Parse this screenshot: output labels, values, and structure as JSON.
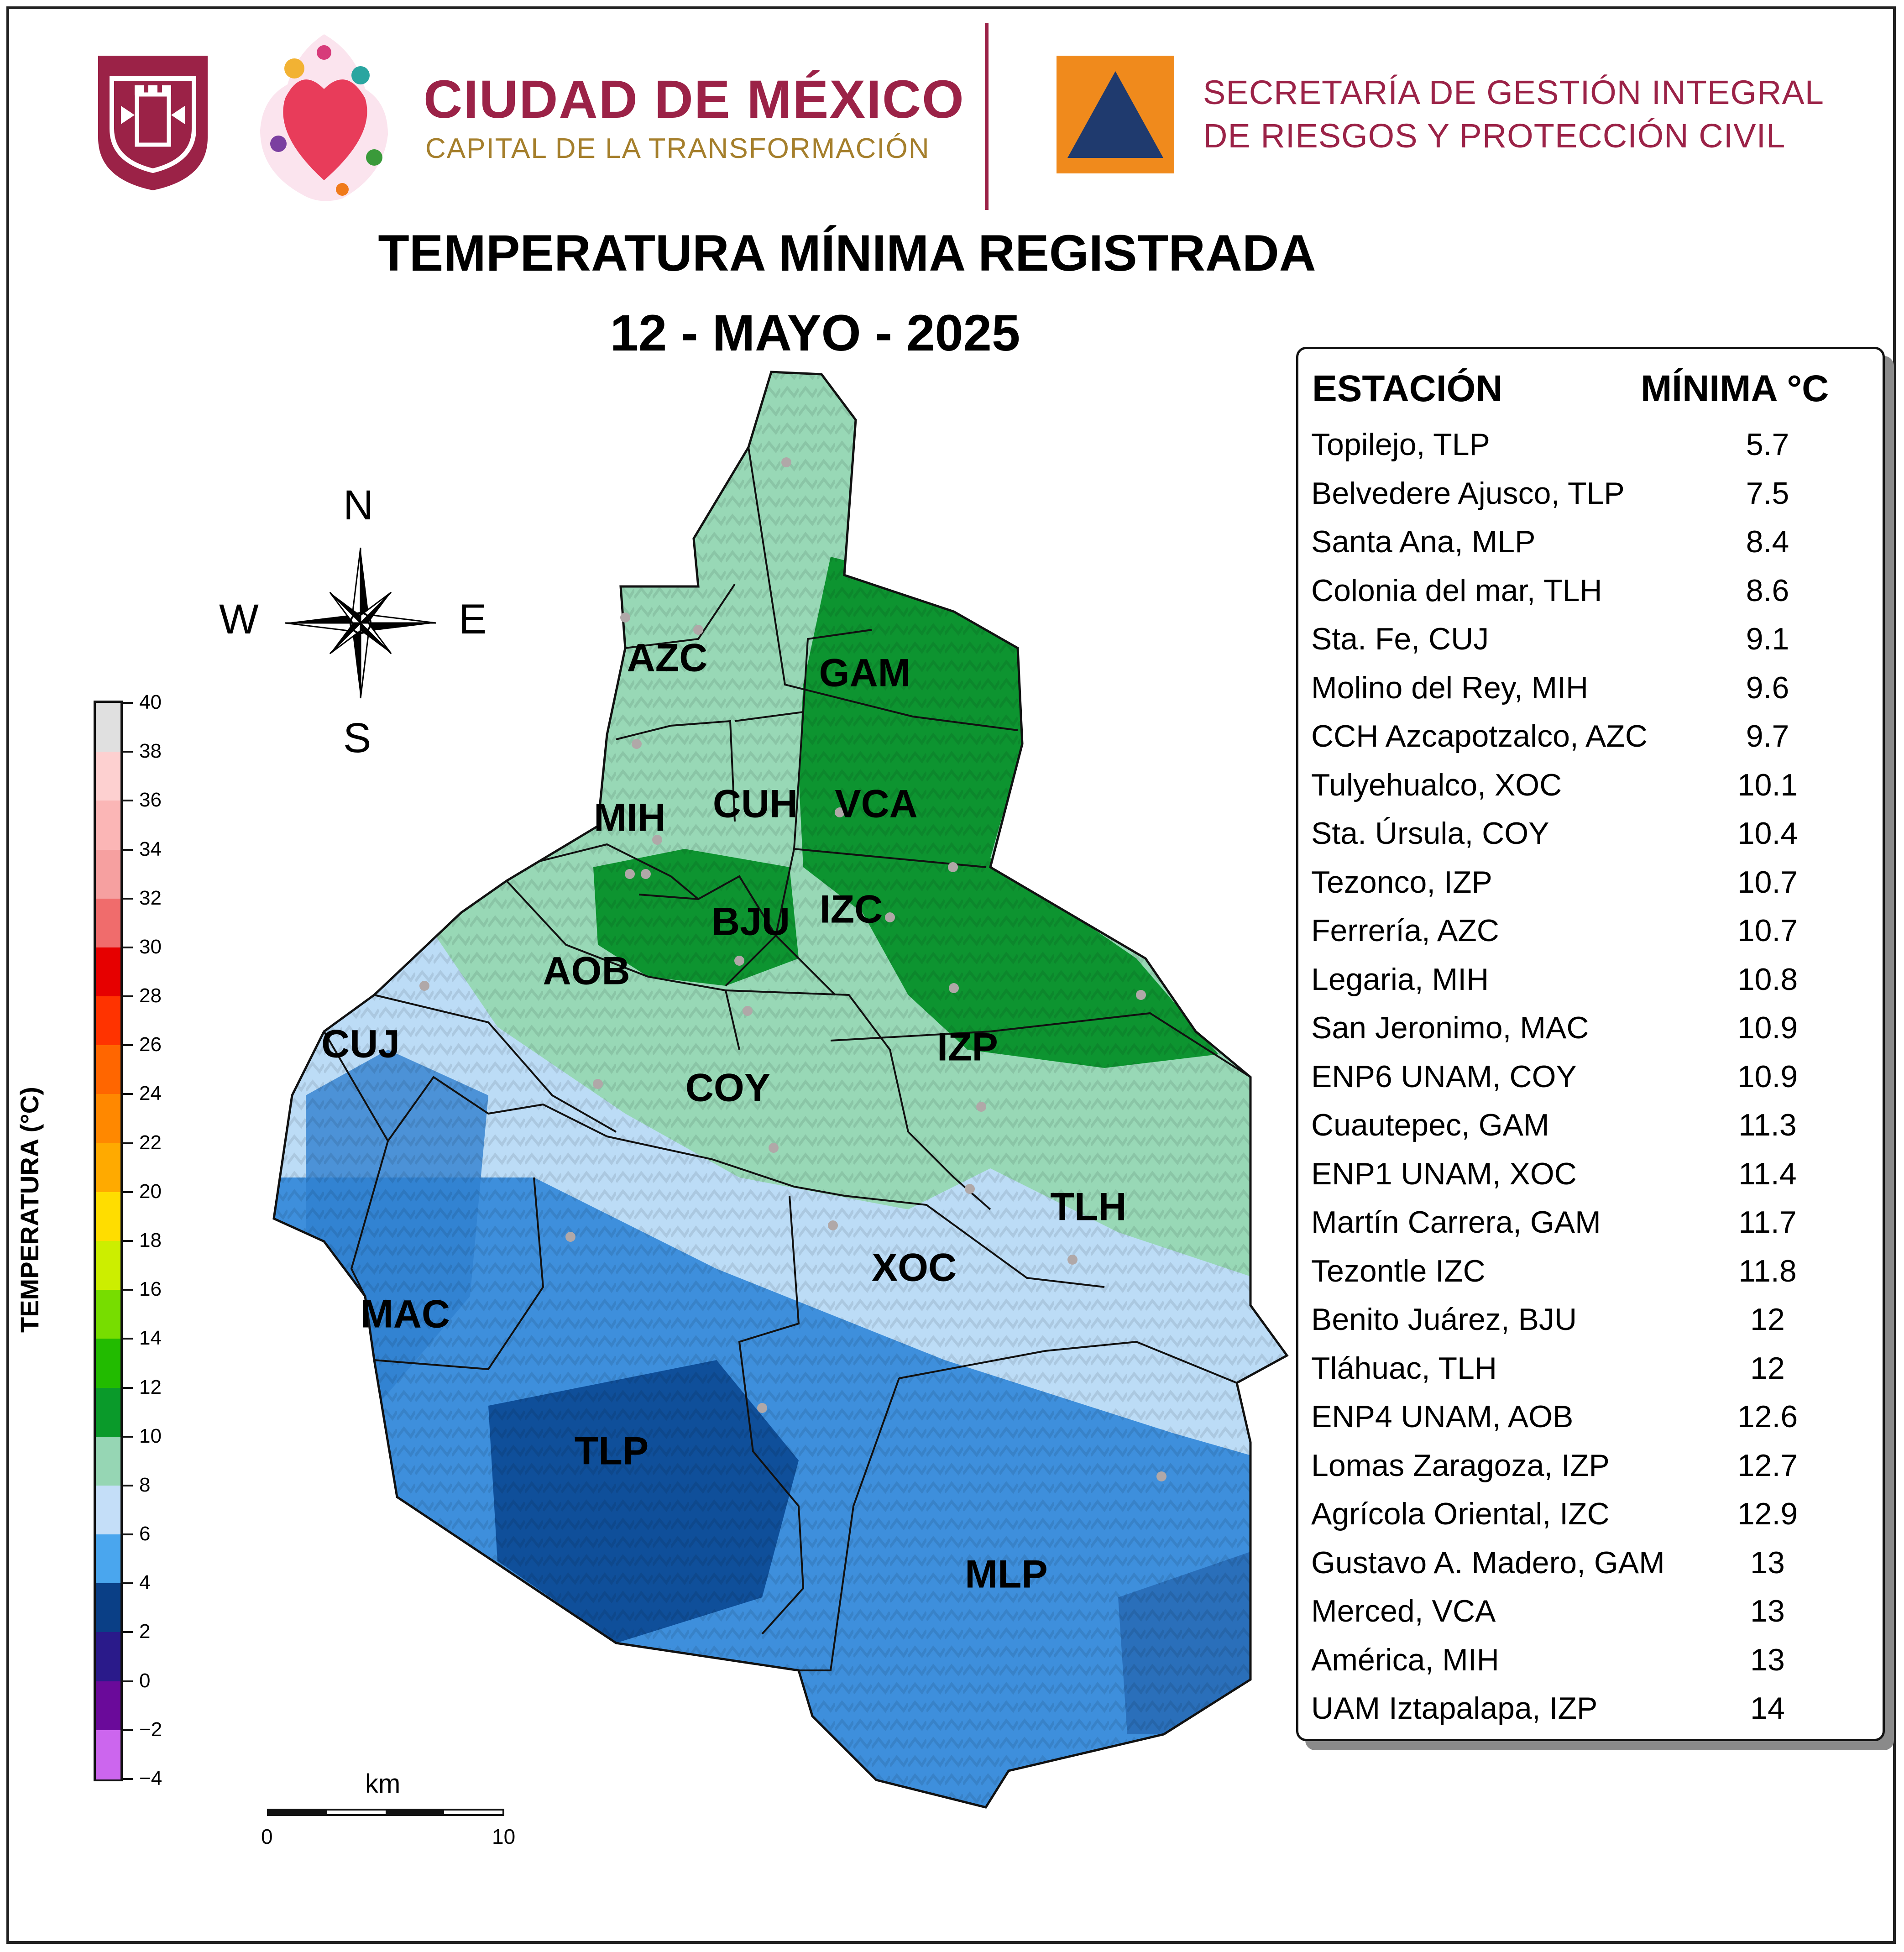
{
  "header": {
    "org_name": "CIUDAD DE MÉXICO",
    "org_subtitle": "CAPITAL DE LA TRANSFORMACIÓN",
    "secretariat_line1": "SECRETARÍA DE GESTIÓN INTEGRAL",
    "secretariat_line2": "DE RIESGOS Y PROTECCIÓN CIVIL"
  },
  "title": {
    "line1": "TEMPERATURA MÍNIMA REGISTRADA",
    "line2": "12 - MAYO - 2025"
  },
  "compass": {
    "n": "N",
    "s": "S",
    "e": "E",
    "w": "W"
  },
  "colorbar": {
    "title": "TEMPERATURA (°C)",
    "min": -4,
    "max": 40,
    "step": 2,
    "tick_labels": [
      "40",
      "38",
      "36",
      "34",
      "32",
      "30",
      "28",
      "26",
      "24",
      "22",
      "20",
      "18",
      "16",
      "14",
      "12",
      "10",
      "8",
      "6",
      "4",
      "2",
      "0",
      "−2",
      "−4"
    ],
    "colors": [
      "#e0e0e0",
      "#fdd0d0",
      "#fbb6b6",
      "#f6a0a0",
      "#f08c80",
      "#f06c6c",
      "#e60000",
      "#ff3300",
      "#ff6600",
      "#ff8800",
      "#ffaa00",
      "#ffdd00",
      "#ffff00",
      "#ccee00",
      "#77dd00",
      "#22bb00",
      "#0a9a2a",
      "#96d6b4",
      "#c4def8",
      "#4aa6ee",
      "#1f6fc0",
      "#0a3f86",
      "#2a1a8a",
      "#6a0a9a",
      "#cc66ee"
    ]
  },
  "scale": {
    "unit": "km",
    "start": "0",
    "end": "10"
  },
  "map": {
    "district_labels": [
      "AZC",
      "GAM",
      "MIH",
      "CUH",
      "VCA",
      "BJU",
      "IZC",
      "AOB",
      "CUJ",
      "COY",
      "IZP",
      "TLH",
      "XOC",
      "MAC",
      "TLP",
      "MLP"
    ],
    "colors": {
      "cold_dark": "#0f4f9a",
      "cold": "#3e8fdc",
      "cool": "#bcdcf6",
      "mild": "#98d8b6",
      "warm": "#0d9430",
      "boundary": "#111111"
    }
  },
  "legend": {
    "header_station": "ESTACIÓN",
    "header_min": "MÍNIMA °C",
    "rows": [
      {
        "station": "Topilejo, TLP",
        "value": "5.7"
      },
      {
        "station": "Belvedere Ajusco, TLP",
        "value": "7.5"
      },
      {
        "station": "Santa Ana, MLP",
        "value": "8.4"
      },
      {
        "station": "Colonia del mar, TLH",
        "value": "8.6"
      },
      {
        "station": "Sta. Fe, CUJ",
        "value": "9.1"
      },
      {
        "station": "Molino del Rey, MIH",
        "value": "9.6"
      },
      {
        "station": "CCH Azcapotzalco, AZC",
        "value": "9.7"
      },
      {
        "station": "Tulyehualco, XOC",
        "value": "10.1"
      },
      {
        "station": "Sta. Úrsula, COY",
        "value": "10.4"
      },
      {
        "station": "Tezonco, IZP",
        "value": "10.7"
      },
      {
        "station": "Ferrería, AZC",
        "value": "10.7"
      },
      {
        "station": "Legaria, MIH",
        "value": "10.8"
      },
      {
        "station": "San Jeronimo, MAC",
        "value": "10.9"
      },
      {
        "station": "ENP6 UNAM,  COY",
        "value": "10.9"
      },
      {
        "station": "Cuautepec, GAM",
        "value": "11.3"
      },
      {
        "station": "ENP1 UNAM,   XOC",
        "value": "11.4"
      },
      {
        "station": "Martín Carrera, GAM",
        "value": "11.7"
      },
      {
        "station": "Tezontle IZC",
        "value": "11.8"
      },
      {
        "station": "Benito Juárez, BJU",
        "value": "12"
      },
      {
        "station": "Tláhuac, TLH",
        "value": "12"
      },
      {
        "station": "ENP4 UNAM,  AOB",
        "value": "12.6"
      },
      {
        "station": "Lomas Zaragoza, IZP",
        "value": "12.7"
      },
      {
        "station": "Agrícola Oriental, IZC",
        "value": "12.9"
      },
      {
        "station": "Gustavo A. Madero, GAM",
        "value": "13"
      },
      {
        "station": "Merced, VCA",
        "value": "13"
      },
      {
        "station": "América, MIH",
        "value": "13"
      },
      {
        "station": "UAM Iztapalapa, IZP",
        "value": "14"
      }
    ]
  }
}
